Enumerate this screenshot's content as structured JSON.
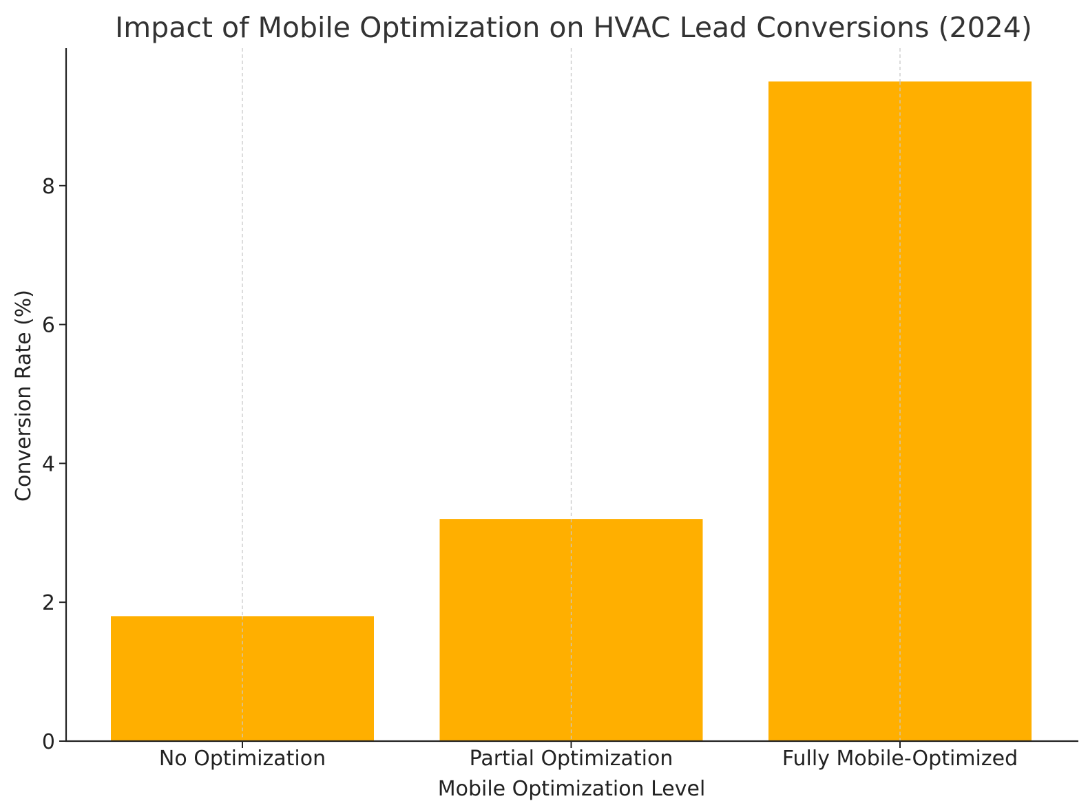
{
  "chart_data": {
    "type": "bar",
    "title": "Impact of Mobile Optimization on HVAC Lead Conversions (2024)",
    "xlabel": "Mobile Optimization Level",
    "ylabel": "Conversion Rate (%)",
    "categories": [
      "No Optimization",
      "Partial Optimization",
      "Fully Mobile-Optimized"
    ],
    "values": [
      1.8,
      3.2,
      9.5
    ],
    "ylim": [
      0,
      9.98
    ],
    "yticks": [
      0,
      2,
      4,
      6,
      8
    ],
    "grid": "vertical dashed lines at category centers",
    "bar_color": "#FFAF00",
    "legend": "none"
  }
}
